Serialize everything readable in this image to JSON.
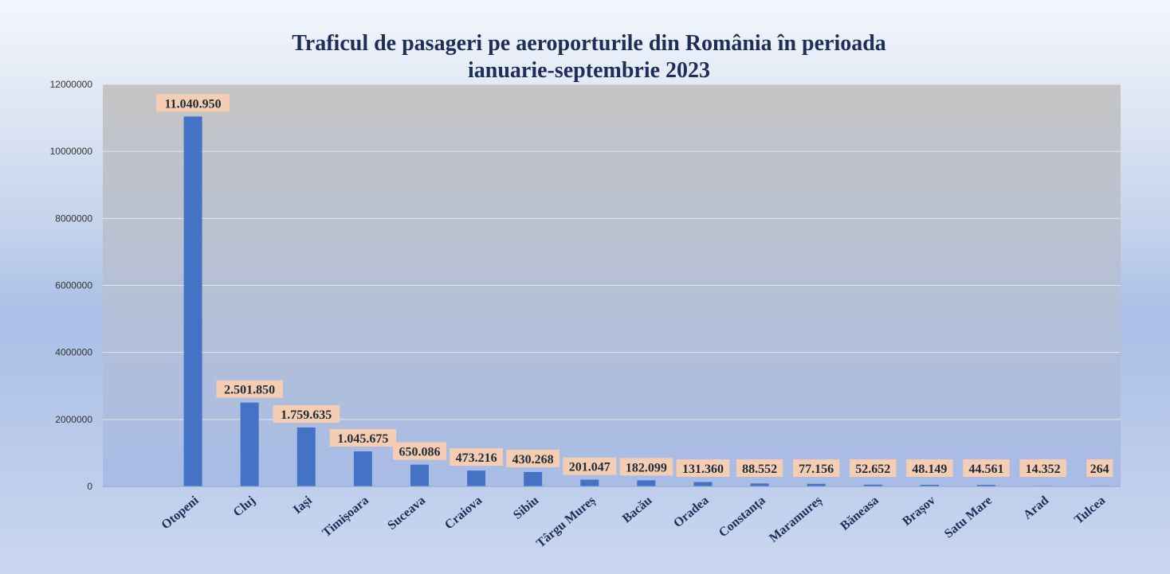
{
  "chart_data": {
    "type": "bar",
    "title": "Traficul de pasageri pe aeroporturile din România în perioada ianuarie-septembrie 2023",
    "title_lines": [
      "Traficul de pasageri pe aeroporturile din România în perioada",
      "ianuarie-septembrie 2023"
    ],
    "categories": [
      "Otopeni",
      "Cluj",
      "Iași",
      "Timișoara",
      "Suceava",
      "Craiova",
      "Sibiu",
      "Târgu Mureș",
      "Bacău",
      "Oradea",
      "Constanța",
      "Maramureș",
      "Băneasa",
      "Brașov",
      "Satu Mare",
      "Arad",
      "Tulcea"
    ],
    "values": [
      11040950,
      2501850,
      1759635,
      1045675,
      650086,
      473216,
      430268,
      201047,
      182099,
      131360,
      88552,
      77156,
      52652,
      48149,
      44561,
      14352,
      264
    ],
    "data_labels": [
      "11.040.950",
      "2.501.850",
      "1.759.635",
      "1.045.675",
      "650.086",
      "473.216",
      "430.268",
      "201.047",
      "182.099",
      "131.360",
      "88.552",
      "77.156",
      "52.652",
      "48.149",
      "44.561",
      "14.352",
      "264"
    ],
    "ylim": [
      0,
      12000000
    ],
    "yticks": [
      0,
      2000000,
      4000000,
      6000000,
      8000000,
      10000000,
      12000000
    ],
    "ytick_labels": [
      "0",
      "2000000",
      "4000000",
      "6000000",
      "8000000",
      "10000000",
      "12000000"
    ],
    "xlabel": "",
    "ylabel": "",
    "grid": true,
    "legend": "none",
    "colors": {
      "bar": "#4472c4",
      "data_label_bg": "#f4cdb2",
      "plot_top": "#c4c4c4",
      "plot_bottom": "#a8bce6",
      "gridline": "#e6e6e6",
      "title": "#1f2d5a"
    }
  }
}
